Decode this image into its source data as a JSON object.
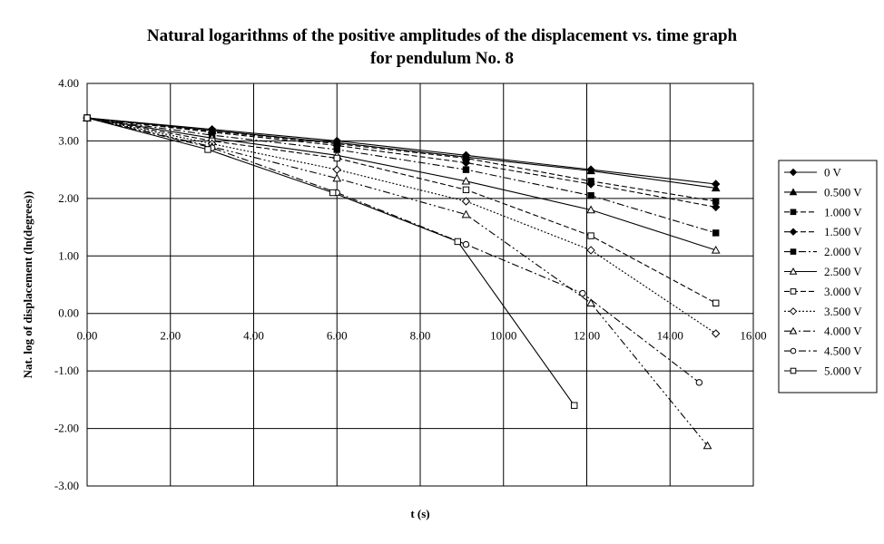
{
  "chart_data": {
    "type": "line",
    "title_line1": "Natural logarithms of the positive amplitudes of the displacement vs. time graph",
    "title_line2": "for pendulum No. 8",
    "xlabel": "t (s)",
    "ylabel": "Nat. log of displacement (ln(degrees))",
    "xlim": [
      0,
      16
    ],
    "ylim": [
      -3,
      4
    ],
    "x_ticks": [
      "0.00",
      "2.00",
      "4.00",
      "6.00",
      "8.00",
      "10.00",
      "12.00",
      "14.00",
      "16.00"
    ],
    "y_ticks": [
      "4.00",
      "3.00",
      "2.00",
      "1.00",
      "0.00",
      "-1.00",
      "-2.00",
      "-3.00"
    ],
    "grid": true,
    "legend_position": "right",
    "series": [
      {
        "name": "0 V",
        "dash": "solid",
        "marker": "diamond-filled",
        "points": [
          [
            0.0,
            3.4
          ],
          [
            3.0,
            3.2
          ],
          [
            6.0,
            3.0
          ],
          [
            9.1,
            2.75
          ],
          [
            12.1,
            2.5
          ],
          [
            15.1,
            2.25
          ]
        ]
      },
      {
        "name": "0.500 V",
        "dash": "solid",
        "marker": "triangle-filled",
        "points": [
          [
            0.0,
            3.4
          ],
          [
            3.0,
            3.18
          ],
          [
            6.0,
            2.97
          ],
          [
            9.1,
            2.72
          ],
          [
            12.1,
            2.48
          ],
          [
            15.1,
            2.18
          ]
        ]
      },
      {
        "name": "1.000 V",
        "dash": "dash",
        "marker": "square-filled",
        "points": [
          [
            0.0,
            3.4
          ],
          [
            3.0,
            3.17
          ],
          [
            6.0,
            2.95
          ],
          [
            9.1,
            2.7
          ],
          [
            12.1,
            2.3
          ],
          [
            15.1,
            1.95
          ]
        ]
      },
      {
        "name": "1.500 V",
        "dash": "dash",
        "marker": "diamond-filled",
        "points": [
          [
            0.0,
            3.4
          ],
          [
            3.0,
            3.15
          ],
          [
            6.0,
            2.92
          ],
          [
            9.1,
            2.62
          ],
          [
            12.1,
            2.25
          ],
          [
            15.1,
            1.85
          ]
        ]
      },
      {
        "name": "2.000 V",
        "dash": "dashdot",
        "marker": "square-filled",
        "points": [
          [
            0.0,
            3.4
          ],
          [
            3.0,
            3.1
          ],
          [
            6.0,
            2.85
          ],
          [
            9.1,
            2.5
          ],
          [
            12.1,
            2.05
          ],
          [
            15.1,
            1.4
          ]
        ]
      },
      {
        "name": "2.500 V",
        "dash": "solid",
        "marker": "triangle-open",
        "points": [
          [
            0.0,
            3.4
          ],
          [
            3.0,
            3.05
          ],
          [
            6.0,
            2.75
          ],
          [
            9.1,
            2.3
          ],
          [
            12.1,
            1.8
          ],
          [
            15.1,
            1.1
          ]
        ]
      },
      {
        "name": "3.000 V",
        "dash": "dash",
        "marker": "square-open",
        "points": [
          [
            0.0,
            3.4
          ],
          [
            3.0,
            3.0
          ],
          [
            6.0,
            2.7
          ],
          [
            9.1,
            2.15
          ],
          [
            12.1,
            1.35
          ],
          [
            15.1,
            0.18
          ]
        ]
      },
      {
        "name": "3.500 V",
        "dash": "dot",
        "marker": "diamond-open",
        "points": [
          [
            0.0,
            3.4
          ],
          [
            3.0,
            2.95
          ],
          [
            6.0,
            2.5
          ],
          [
            9.1,
            1.95
          ],
          [
            12.1,
            1.1
          ],
          [
            15.1,
            -0.35
          ]
        ]
      },
      {
        "name": "4.000 V",
        "dash": "dashdotdot",
        "marker": "triangle-open",
        "points": [
          [
            0.0,
            3.4
          ],
          [
            3.0,
            2.9
          ],
          [
            6.0,
            2.35
          ],
          [
            9.1,
            1.72
          ],
          [
            12.1,
            0.18
          ],
          [
            14.9,
            -2.3
          ]
        ]
      },
      {
        "name": "4.500 V",
        "dash": "dashdot",
        "marker": "circle-open",
        "points": [
          [
            0.0,
            3.4
          ],
          [
            3.0,
            2.88
          ],
          [
            6.0,
            2.1
          ],
          [
            9.1,
            1.2
          ],
          [
            11.9,
            0.35
          ],
          [
            14.7,
            -1.2
          ]
        ]
      },
      {
        "name": "5.000 V",
        "dash": "solid",
        "marker": "square-open",
        "points": [
          [
            0.0,
            3.4
          ],
          [
            2.9,
            2.85
          ],
          [
            5.9,
            2.1
          ],
          [
            8.9,
            1.25
          ],
          [
            11.7,
            -1.6
          ]
        ]
      }
    ]
  }
}
